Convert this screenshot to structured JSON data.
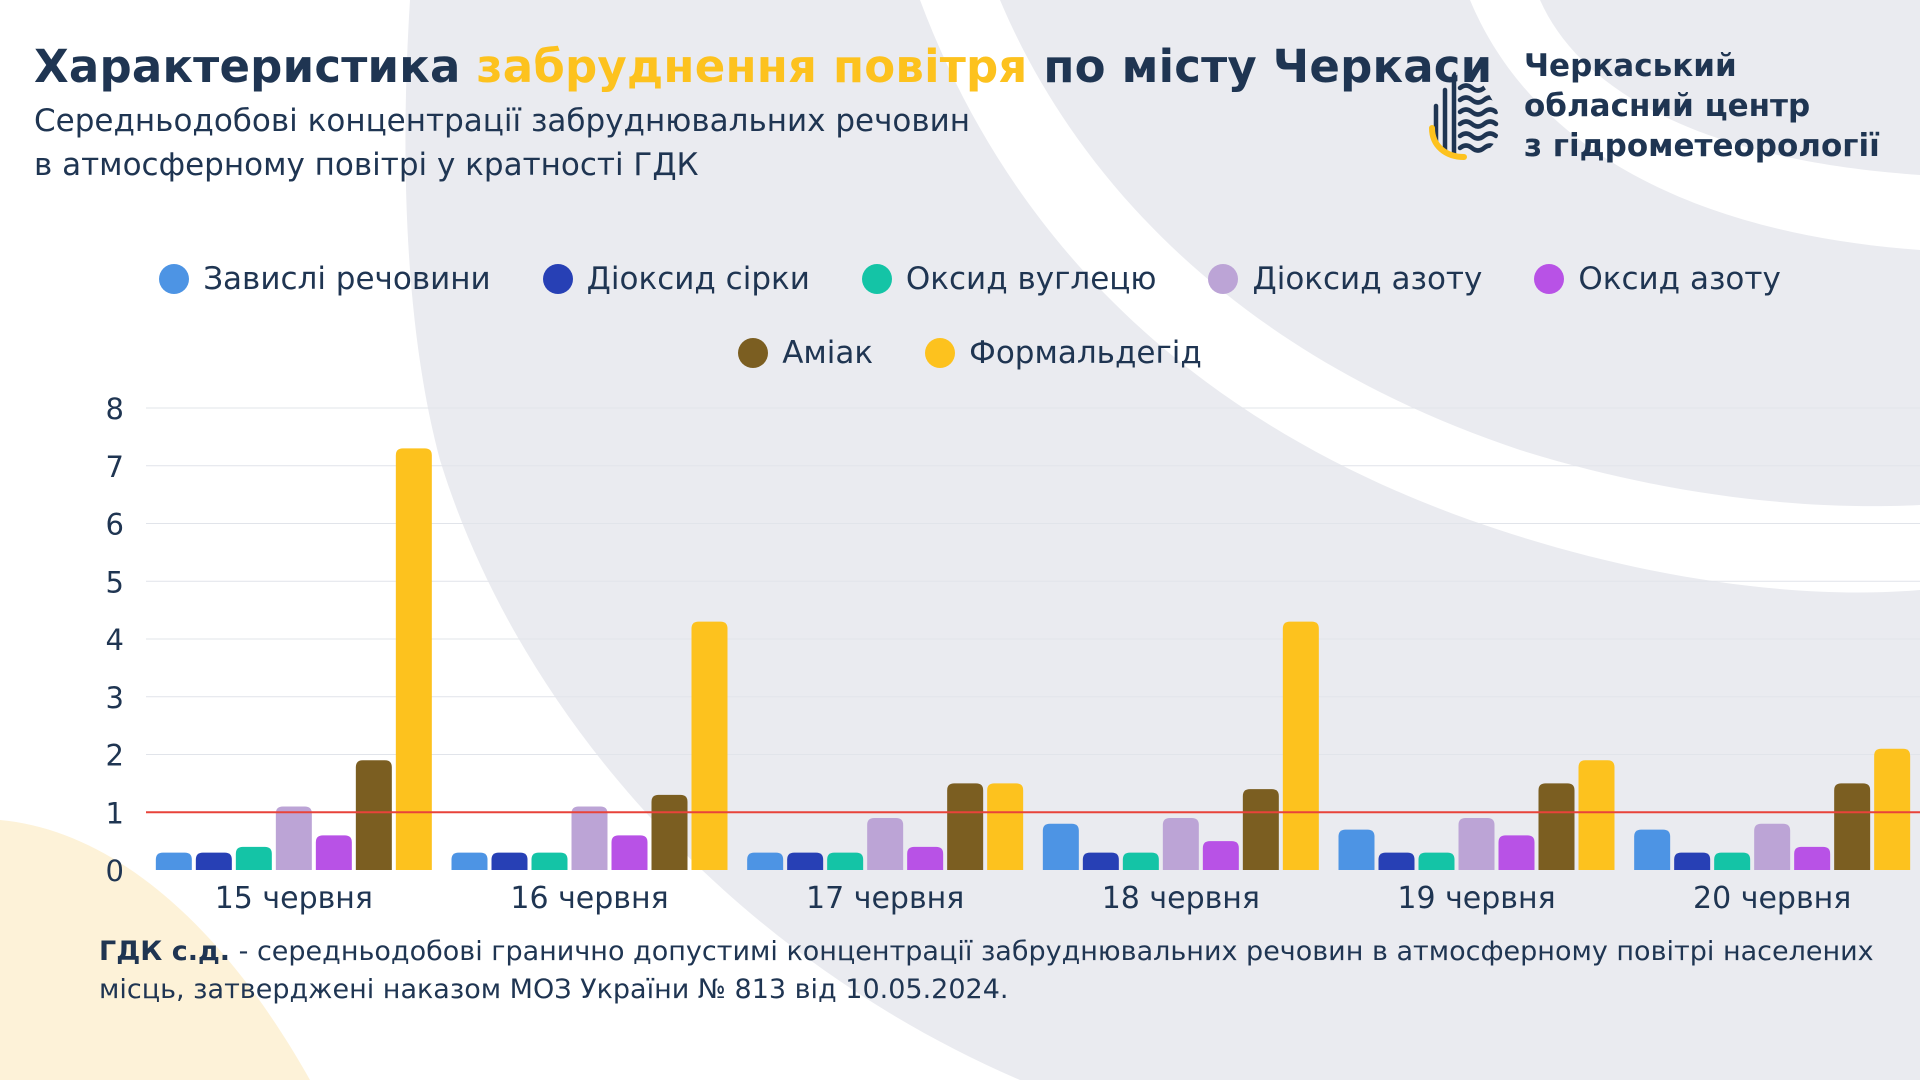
{
  "header": {
    "title_part1": "Характеристика",
    "title_accent": "забруднення повітря",
    "title_part2": "по місту Черкаси",
    "subtitle_line1": "Середньодобові концентрації забруднювальних речовин",
    "subtitle_line2": "в атмосферному повітрі у кратності ГДК"
  },
  "logo": {
    "line1": "Черкаський",
    "line2": "обласний центр",
    "line3": "з гідрометеорології",
    "icon": "water-drop-logo-icon"
  },
  "footnote": {
    "term": "ГДК с.д.",
    "text": "- середньодобові гранично допустимі концентрації забруднювальних речовин в атмосферному повітрі населених місць, затверджені наказом МОЗ України № 813 від 10.05.2024."
  },
  "colors": {
    "text": "#1f3552",
    "accent": "#fdc21e",
    "threshold_line": "#e8433a",
    "grid": "#e1e4ea"
  },
  "chart_data": {
    "type": "bar",
    "categories": [
      "15 червня",
      "16 червня",
      "17 червня",
      "18 червня",
      "19 червня",
      "20 червня"
    ],
    "ylim": [
      0,
      8
    ],
    "yticks": [
      0,
      1,
      2,
      3,
      4,
      5,
      6,
      7,
      8
    ],
    "grid": true,
    "legend_position": "top",
    "threshold": 1,
    "series": [
      {
        "name": "Завислі речовини",
        "color": "#4d94e4",
        "values": [
          0.3,
          0.3,
          0.3,
          0.8,
          0.7,
          0.7
        ]
      },
      {
        "name": "Діоксид сірки",
        "color": "#2740b5",
        "values": [
          0.3,
          0.3,
          0.3,
          0.3,
          0.3,
          0.3
        ]
      },
      {
        "name": "Оксид вуглецю",
        "color": "#14c4a6",
        "values": [
          0.4,
          0.3,
          0.3,
          0.3,
          0.3,
          0.3
        ]
      },
      {
        "name": "Діоксид азоту",
        "color": "#bca4d6",
        "values": [
          1.1,
          1.1,
          0.9,
          0.9,
          0.9,
          0.8
        ]
      },
      {
        "name": "Оксид азоту",
        "color": "#b852e6",
        "values": [
          0.6,
          0.6,
          0.4,
          0.5,
          0.6,
          0.4
        ]
      },
      {
        "name": "Аміак",
        "color": "#7b5e21",
        "values": [
          1.9,
          1.3,
          1.5,
          1.4,
          1.5,
          1.5
        ]
      },
      {
        "name": "Формальдегід",
        "color": "#fdc21e",
        "values": [
          7.3,
          4.3,
          1.5,
          4.3,
          1.9,
          2.1
        ]
      }
    ]
  }
}
